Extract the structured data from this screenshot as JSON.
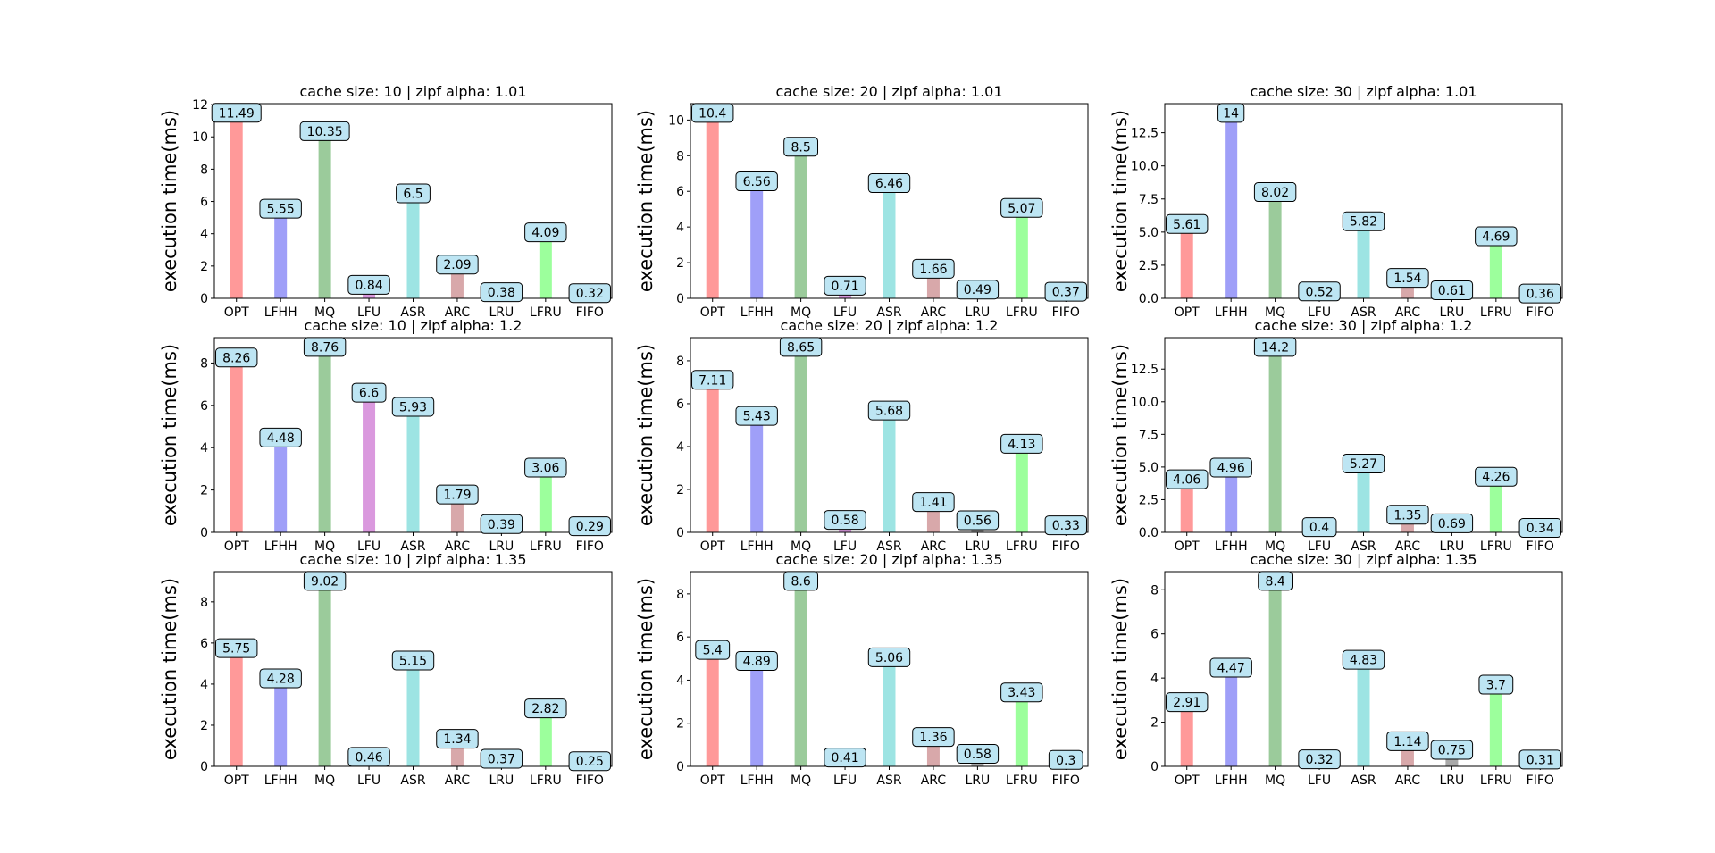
{
  "ylabel": "execution time(ms)",
  "categories": [
    "OPT",
    "LFHH",
    "MQ",
    "LFU",
    "ASR",
    "ARC",
    "LRU",
    "LFRU",
    "FIFO"
  ],
  "bar_colors": [
    "#ff9999",
    "#9f9ff8",
    "#9bcb9b",
    "#da99de",
    "#9de4e3",
    "#d8a8aa",
    "#a9a9a9",
    "#9cff9c",
    "#ffffff"
  ],
  "label_box_color": "#bde5f3",
  "chart_data": [
    {
      "type": "bar",
      "title": "cache size: 10 | zipf alpha: 1.01",
      "ylabel": "execution time(ms)",
      "categories": [
        "OPT",
        "LFHH",
        "MQ",
        "LFU",
        "ASR",
        "ARC",
        "LRU",
        "LFRU",
        "FIFO"
      ],
      "values": [
        11.49,
        5.55,
        10.35,
        0.84,
        6.5,
        2.09,
        0.38,
        4.09,
        0.32
      ],
      "ylim": [
        0,
        12.06
      ],
      "yticks": [
        0,
        2,
        4,
        6,
        8,
        10,
        12
      ],
      "ytick_labels": [
        "0",
        "2",
        "4",
        "6",
        "8",
        "10",
        "12"
      ]
    },
    {
      "type": "bar",
      "title": "cache size: 20 | zipf alpha: 1.01",
      "ylabel": "execution time(ms)",
      "categories": [
        "OPT",
        "LFHH",
        "MQ",
        "LFU",
        "ASR",
        "ARC",
        "LRU",
        "LFRU",
        "FIFO"
      ],
      "values": [
        10.4,
        6.56,
        8.5,
        0.71,
        6.46,
        1.66,
        0.49,
        5.07,
        0.37
      ],
      "ylim": [
        0,
        10.92
      ],
      "yticks": [
        0,
        2,
        4,
        6,
        8,
        10
      ],
      "ytick_labels": [
        "0",
        "2",
        "4",
        "6",
        "8",
        "10"
      ]
    },
    {
      "type": "bar",
      "title": "cache size: 30 | zipf alpha: 1.01",
      "ylabel": "execution time(ms)",
      "categories": [
        "OPT",
        "LFHH",
        "MQ",
        "LFU",
        "ASR",
        "ARC",
        "LRU",
        "LFRU",
        "FIFO"
      ],
      "values": [
        5.61,
        14.0,
        8.02,
        0.52,
        5.82,
        1.54,
        0.61,
        4.69,
        0.36
      ],
      "ylim": [
        0,
        14.7
      ],
      "yticks": [
        0,
        2.5,
        5,
        7.5,
        10,
        12.5
      ],
      "ytick_labels": [
        "0.0",
        "2.5",
        "5.0",
        "7.5",
        "10.0",
        "12.5"
      ]
    },
    {
      "type": "bar",
      "title": "cache size: 10 | zipf alpha: 1.2",
      "ylabel": "execution time(ms)",
      "categories": [
        "OPT",
        "LFHH",
        "MQ",
        "LFU",
        "ASR",
        "ARC",
        "LRU",
        "LFRU",
        "FIFO"
      ],
      "values": [
        8.26,
        4.48,
        8.76,
        6.6,
        5.93,
        1.79,
        0.39,
        3.06,
        0.29
      ],
      "ylim": [
        0,
        9.2
      ],
      "yticks": [
        0,
        2,
        4,
        6,
        8
      ],
      "ytick_labels": [
        "0",
        "2",
        "4",
        "6",
        "8"
      ]
    },
    {
      "type": "bar",
      "title": "cache size: 20 | zipf alpha: 1.2",
      "ylabel": "execution time(ms)",
      "categories": [
        "OPT",
        "LFHH",
        "MQ",
        "LFU",
        "ASR",
        "ARC",
        "LRU",
        "LFRU",
        "FIFO"
      ],
      "values": [
        7.11,
        5.43,
        8.65,
        0.58,
        5.68,
        1.41,
        0.56,
        4.13,
        0.33
      ],
      "ylim": [
        0,
        9.08
      ],
      "yticks": [
        0,
        2,
        4,
        6,
        8
      ],
      "ytick_labels": [
        "0",
        "2",
        "4",
        "6",
        "8"
      ]
    },
    {
      "type": "bar",
      "title": "cache size: 30 | zipf alpha: 1.2",
      "ylabel": "execution time(ms)",
      "categories": [
        "OPT",
        "LFHH",
        "MQ",
        "LFU",
        "ASR",
        "ARC",
        "LRU",
        "LFRU",
        "FIFO"
      ],
      "values": [
        4.06,
        4.96,
        14.2,
        0.4,
        5.27,
        1.35,
        0.69,
        4.26,
        0.34
      ],
      "ylim": [
        0,
        14.91
      ],
      "yticks": [
        0,
        2.5,
        5,
        7.5,
        10,
        12.5
      ],
      "ytick_labels": [
        "0.0",
        "2.5",
        "5.0",
        "7.5",
        "10.0",
        "12.5"
      ]
    },
    {
      "type": "bar",
      "title": "cache size: 10 | zipf alpha: 1.35",
      "ylabel": "execution time(ms)",
      "categories": [
        "OPT",
        "LFHH",
        "MQ",
        "LFU",
        "ASR",
        "ARC",
        "LRU",
        "LFRU",
        "FIFO"
      ],
      "values": [
        5.75,
        4.28,
        9.02,
        0.46,
        5.15,
        1.34,
        0.37,
        2.82,
        0.25
      ],
      "ylim": [
        0,
        9.47
      ],
      "yticks": [
        0,
        2,
        4,
        6,
        8
      ],
      "ytick_labels": [
        "0",
        "2",
        "4",
        "6",
        "8"
      ]
    },
    {
      "type": "bar",
      "title": "cache size: 20 | zipf alpha: 1.35",
      "ylabel": "execution time(ms)",
      "categories": [
        "OPT",
        "LFHH",
        "MQ",
        "LFU",
        "ASR",
        "ARC",
        "LRU",
        "LFRU",
        "FIFO"
      ],
      "values": [
        5.4,
        4.89,
        8.6,
        0.41,
        5.06,
        1.36,
        0.58,
        3.43,
        0.3
      ],
      "ylim": [
        0,
        9.03
      ],
      "yticks": [
        0,
        2,
        4,
        6,
        8
      ],
      "ytick_labels": [
        "0",
        "2",
        "4",
        "6",
        "8"
      ]
    },
    {
      "type": "bar",
      "title": "cache size: 30 | zipf alpha: 1.35",
      "ylabel": "execution time(ms)",
      "categories": [
        "OPT",
        "LFHH",
        "MQ",
        "LFU",
        "ASR",
        "ARC",
        "LRU",
        "LFRU",
        "FIFO"
      ],
      "values": [
        2.91,
        4.47,
        8.4,
        0.32,
        4.83,
        1.14,
        0.75,
        3.7,
        0.31
      ],
      "ylim": [
        0,
        8.82
      ],
      "yticks": [
        0,
        2,
        4,
        6,
        8
      ],
      "ytick_labels": [
        "0",
        "2",
        "4",
        "6",
        "8"
      ]
    }
  ]
}
